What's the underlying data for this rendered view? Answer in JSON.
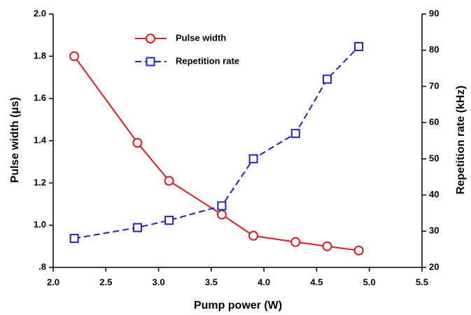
{
  "chart_data": {
    "type": "line",
    "x": [
      2.2,
      2.8,
      3.1,
      3.6,
      3.9,
      4.3,
      4.6,
      4.9
    ],
    "series": [
      {
        "name": "Pulse width",
        "color": "#e0191e",
        "marker": "circle",
        "dash": "solid",
        "values": [
          1.8,
          1.39,
          1.21,
          1.05,
          0.95,
          0.92,
          0.9,
          0.88
        ]
      },
      {
        "name": "Repetition rate",
        "color": "#1e22c8",
        "marker": "square",
        "dash": "dashed",
        "axis": "y2",
        "values": [
          28,
          31,
          33,
          37,
          50,
          57,
          72,
          81
        ]
      }
    ],
    "xlabel": "Pump power (W)",
    "ylabel": "Pulse width (μs)",
    "y2label": "Repetition rate (kHz)",
    "xlim": [
      2.0,
      5.5
    ],
    "xticks": [
      {
        "value": 2.0,
        "label": "2.0"
      },
      2.5,
      {
        "value": 3.0,
        "label": "3.0"
      },
      3.5,
      {
        "value": 4.0,
        "label": "4.0"
      },
      4.5,
      {
        "value": 5.0,
        "label": "5.0"
      },
      5.5
    ],
    "ylim": [
      0.8,
      2.0
    ],
    "yticks": [
      {
        "value": 0.8,
        "label": ".8"
      },
      {
        "value": 1.0,
        "label": "1.0"
      },
      1.2,
      1.4,
      1.6,
      1.8,
      {
        "value": 2.0,
        "label": "2.0"
      }
    ],
    "y2lim": [
      20,
      90
    ],
    "y2ticks": [
      20,
      30,
      40,
      50,
      60,
      70,
      80,
      90
    ],
    "legend": "upper center"
  }
}
